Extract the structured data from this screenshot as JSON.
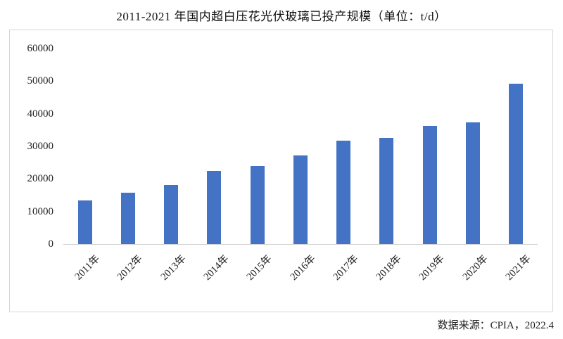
{
  "title": "2011-2021 年国内超白压花光伏玻璃已投产规模（单位：t/d）",
  "source": "数据来源：CPIA，2022.4",
  "colors": {
    "bar": "#4472C4",
    "axis_line": "#d2d2d2",
    "box_border": "#d6d6d6",
    "text": "#222222"
  },
  "chart_data": {
    "type": "bar",
    "title": "2011-2021 年国内超白压花光伏玻璃已投产规模（单位：t/d）",
    "unit": "t/d",
    "categories": [
      "2011年",
      "2012年",
      "2013年",
      "2014年",
      "2015年",
      "2016年",
      "2017年",
      "2018年",
      "2019年",
      "2020年",
      "2021年"
    ],
    "values": [
      13400,
      15700,
      18100,
      22500,
      23900,
      27200,
      31700,
      32600,
      36200,
      37300,
      49300
    ],
    "xlabel": "",
    "ylabel": "",
    "ylim": [
      0,
      60000
    ],
    "ytick_step": 10000,
    "yticks": [
      0,
      10000,
      20000,
      30000,
      40000,
      50000,
      60000
    ],
    "grid": false,
    "legend": false,
    "bar_color": "#4472C4",
    "source_note": "数据来源：CPIA，2022.4"
  }
}
